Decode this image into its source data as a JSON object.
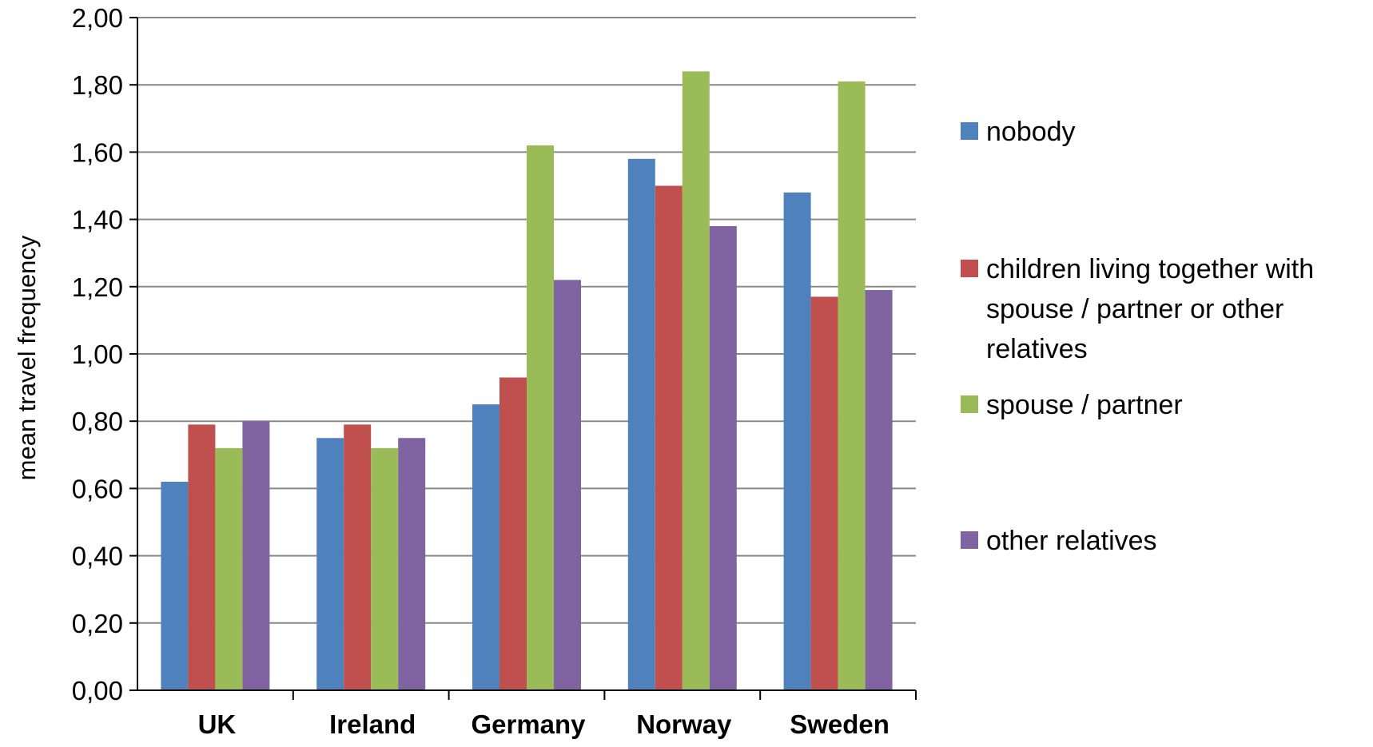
{
  "chart_data": {
    "type": "bar",
    "categories": [
      "UK",
      "Ireland",
      "Germany",
      "Norway",
      "Sweden"
    ],
    "series": [
      {
        "name": "nobody",
        "color": "#4F81BD",
        "values": [
          0.62,
          0.75,
          0.85,
          1.58,
          1.48
        ]
      },
      {
        "name": "children living together with spouse / partner or other relatives",
        "color": "#C0504D",
        "values": [
          0.79,
          0.79,
          0.93,
          1.5,
          1.17
        ]
      },
      {
        "name": "spouse / partner",
        "color": "#9BBB59",
        "values": [
          0.72,
          0.72,
          1.62,
          1.84,
          1.81
        ]
      },
      {
        "name": "other relatives",
        "color": "#8064A2",
        "values": [
          0.8,
          0.75,
          1.22,
          1.38,
          1.19
        ]
      }
    ],
    "title": "",
    "xlabel": "",
    "ylabel": "mean travel frequency",
    "ylim": [
      0,
      2
    ],
    "yticks": [
      "0,00",
      "0,20",
      "0,40",
      "0,60",
      "0,80",
      "1,00",
      "1,20",
      "1,40",
      "1,60",
      "1,80",
      "2,00"
    ],
    "grid": true,
    "legend_position": "right"
  }
}
